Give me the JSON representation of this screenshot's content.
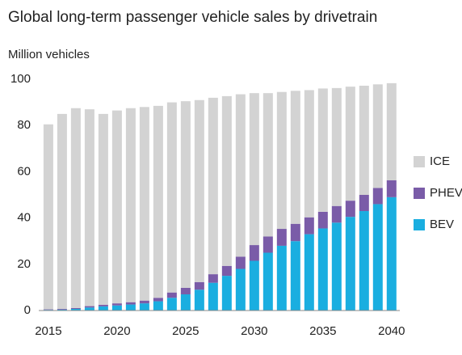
{
  "chart_data": {
    "type": "stacked_bar",
    "title": "Global long-term passenger vehicle sales by drivetrain",
    "y_label": "Million vehicles",
    "x": [
      2015,
      2016,
      2017,
      2018,
      2019,
      2020,
      2021,
      2022,
      2023,
      2024,
      2025,
      2026,
      2027,
      2028,
      2029,
      2030,
      2031,
      2032,
      2033,
      2034,
      2035,
      2036,
      2037,
      2038,
      2039,
      2040
    ],
    "xlim": [
      2014.3,
      2040.6
    ],
    "xticks": [
      2015,
      2020,
      2025,
      2030,
      2035,
      2040
    ],
    "ylim": [
      0,
      100
    ],
    "yticks": [
      0,
      20,
      40,
      60,
      80,
      100
    ],
    "series": [
      {
        "name": "BEV",
        "color": "#1aaee0",
        "values": [
          0.3,
          0.4,
          0.7,
          1.3,
          1.8,
          2.2,
          2.6,
          3.1,
          4,
          5.5,
          7,
          9,
          12,
          15,
          18,
          21.5,
          25,
          28,
          30,
          33,
          35.5,
          38,
          40.5,
          43,
          46,
          49
        ]
      },
      {
        "name": "PHEV",
        "color": "#7a5ca8",
        "values": [
          0.2,
          0.3,
          0.4,
          0.6,
          0.7,
          0.9,
          1.0,
          1.2,
          1.5,
          2.3,
          2.8,
          3.3,
          3.7,
          4.3,
          5.3,
          6.8,
          7,
          7.3,
          7.5,
          7.3,
          7.2,
          7.2,
          7,
          7,
          7,
          7.3
        ]
      },
      {
        "name": "ICE",
        "color": "#d3d3d3",
        "values": [
          80,
          84.3,
          86.4,
          85.1,
          82.5,
          83.4,
          83.9,
          83.7,
          83,
          82.2,
          80.7,
          78.7,
          76.3,
          73.4,
          70.2,
          65.7,
          62,
          59.2,
          57.5,
          55,
          53.3,
          51,
          49.3,
          47.2,
          44.8,
          42
        ]
      }
    ]
  }
}
